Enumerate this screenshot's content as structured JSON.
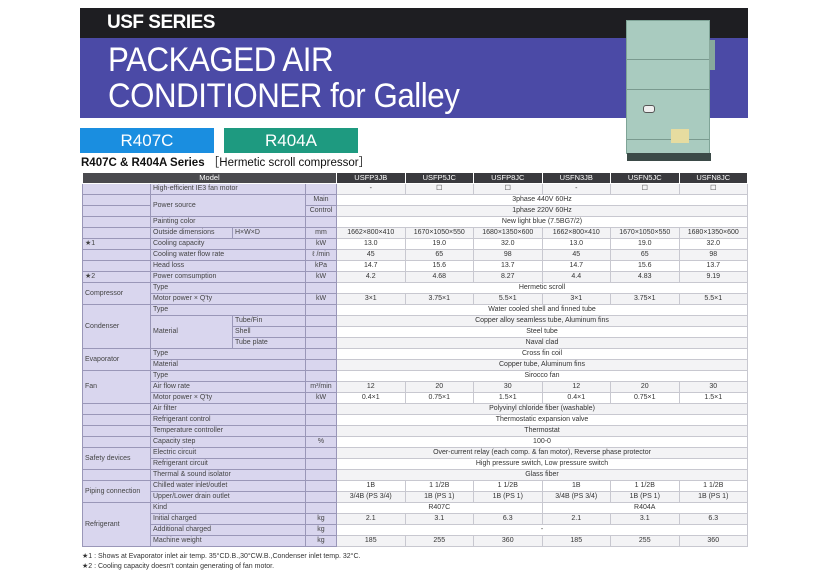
{
  "header": {
    "series": "USF SERIES",
    "title_line1": "PACKAGED AIR",
    "title_line2": "CONDITIONER for Galley",
    "tags": [
      "R407C",
      "R404A"
    ],
    "subtitle": "R407C & R404A Series",
    "subtitle_note": "［Hermetic scroll compressor］"
  },
  "colors": {
    "black_band": "#1e1e22",
    "blue_band": "#4b4aa6",
    "r407c": "#1a8ee0",
    "r404a": "#1e9a80",
    "label_bg": "#d9d6ee"
  },
  "table": {
    "model_label": "Model",
    "models": [
      "USFP3JB",
      "USFP5JC",
      "USFP8JC",
      "USFN3JB",
      "USFN5JC",
      "USFN8JC"
    ],
    "rows": [
      {
        "item": "High-efficient IE3 fan motor",
        "values": [
          "-",
          "☐",
          "☐",
          "-",
          "☐",
          "☐"
        ]
      },
      {
        "item": "Power source",
        "item_span": 2,
        "unit": "Main",
        "all": "3phase 440V 60Hz"
      },
      {
        "unit": "Control",
        "all": "1phase 220V 60Hz"
      },
      {
        "item": "Painting color",
        "all": "New light blue (7.5BG7/2)"
      },
      {
        "item": "Outside dimensions",
        "sub": "H×W×D",
        "unit": "mm",
        "values": [
          "1662×800×410",
          "1670×1050×550",
          "1680×1350×600",
          "1662×800×410",
          "1670×1050×550",
          "1680×1350×600"
        ]
      },
      {
        "group": "★1",
        "item": "Cooling capacity",
        "unit": "kW",
        "values": [
          "13.0",
          "19.0",
          "32.0",
          "13.0",
          "19.0",
          "32.0"
        ]
      },
      {
        "item": "Cooling water flow rate",
        "unit": "ℓ /min",
        "values": [
          "45",
          "65",
          "98",
          "45",
          "65",
          "98"
        ]
      },
      {
        "item": "Head loss",
        "unit": "kPa",
        "values": [
          "14.7",
          "15.6",
          "13.7",
          "14.7",
          "15.6",
          "13.7"
        ]
      },
      {
        "group": "★2",
        "item": "Power comsumption",
        "unit": "kW",
        "values": [
          "4.2",
          "4.68",
          "8.27",
          "4.4",
          "4.83",
          "9.19"
        ]
      },
      {
        "group": "Compressor",
        "group_span": 2,
        "item": "Type",
        "all": "Hermetic scroll"
      },
      {
        "item": "Motor power × Q'ty",
        "unit": "kW",
        "values": [
          "3×1",
          "3.75×1",
          "5.5×1",
          "3×1",
          "3.75×1",
          "5.5×1"
        ]
      },
      {
        "group": "Condenser",
        "group_span": 4,
        "item": "Type",
        "all": "Water cooled shell and finned tube"
      },
      {
        "item": "Material",
        "item_span": 3,
        "sub": "Tube/Fin",
        "all": "Copper alloy seamless tube, Aluminum fins"
      },
      {
        "sub": "Shell",
        "all": "Steel tube"
      },
      {
        "sub": "Tube plate",
        "all": "Naval clad"
      },
      {
        "group": "Evaporator",
        "group_span": 2,
        "item": "Type",
        "all": "Cross fin coil"
      },
      {
        "item": "Material",
        "all": "Copper tube, Aluminum fins"
      },
      {
        "group": "Fan",
        "group_span": 3,
        "item": "Type",
        "all": "Sirocco fan"
      },
      {
        "item": "Air flow rate",
        "unit": "m³/min",
        "values": [
          "12",
          "20",
          "30",
          "12",
          "20",
          "30"
        ]
      },
      {
        "item": "Motor power × Q'ty",
        "unit": "kW",
        "values": [
          "0.4×1",
          "0.75×1",
          "1.5×1",
          "0.4×1",
          "0.75×1",
          "1.5×1"
        ]
      },
      {
        "item": "Air filter",
        "all": "Polyvinyl chloride fiber (washable)"
      },
      {
        "item": "Refrigerant control",
        "all": "Thermostatic expansion valve"
      },
      {
        "item": "Temperature controller",
        "all": "Thermostat"
      },
      {
        "item": "Capacity step",
        "unit": "%",
        "all": "100-0"
      },
      {
        "group": "Safety devices",
        "group_span": 2,
        "item": "Electric circuit",
        "all": "Over-current relay (each comp. & fan motor), Reverse phase protector"
      },
      {
        "item": "Refrigerant circuit",
        "all": "High pressure switch,   Low pressure switch"
      },
      {
        "item": "Thermal & sound isolator",
        "all": "Glass fiber"
      },
      {
        "group": "Piping connection",
        "group_span": 2,
        "item": "Chilled water inlet/outlet",
        "values": [
          "1B",
          "1 1/2B",
          "1 1/2B",
          "1B",
          "1 1/2B",
          "1 1/2B"
        ]
      },
      {
        "item": "Upper/Lower drain outlet",
        "values": [
          "3/4B (PS 3/4)",
          "1B (PS 1)",
          "1B (PS 1)",
          "3/4B (PS 3/4)",
          "1B (PS 1)",
          "1B (PS 1)"
        ]
      },
      {
        "group": "Refrigerant",
        "group_span": 4,
        "item": "Kind",
        "split": [
          "R407C",
          "R404A"
        ]
      },
      {
        "item": "Initial charged",
        "unit": "kg",
        "values": [
          "2.1",
          "3.1",
          "6.3",
          "2.1",
          "3.1",
          "6.3"
        ]
      },
      {
        "item": "Additional charged",
        "unit": "kg",
        "all": "-"
      },
      {
        "item": "Machine weight",
        "unit": "kg",
        "values": [
          "185",
          "255",
          "360",
          "185",
          "255",
          "360"
        ]
      }
    ]
  },
  "footnotes": [
    "★1 : Shows at Evaporator inlet air temp. 35°CD.B.,30°CW.B.,Condenser inlet temp. 32°C.",
    "★2 : Cooling capacity doesn't contain  generating of fan motor."
  ]
}
